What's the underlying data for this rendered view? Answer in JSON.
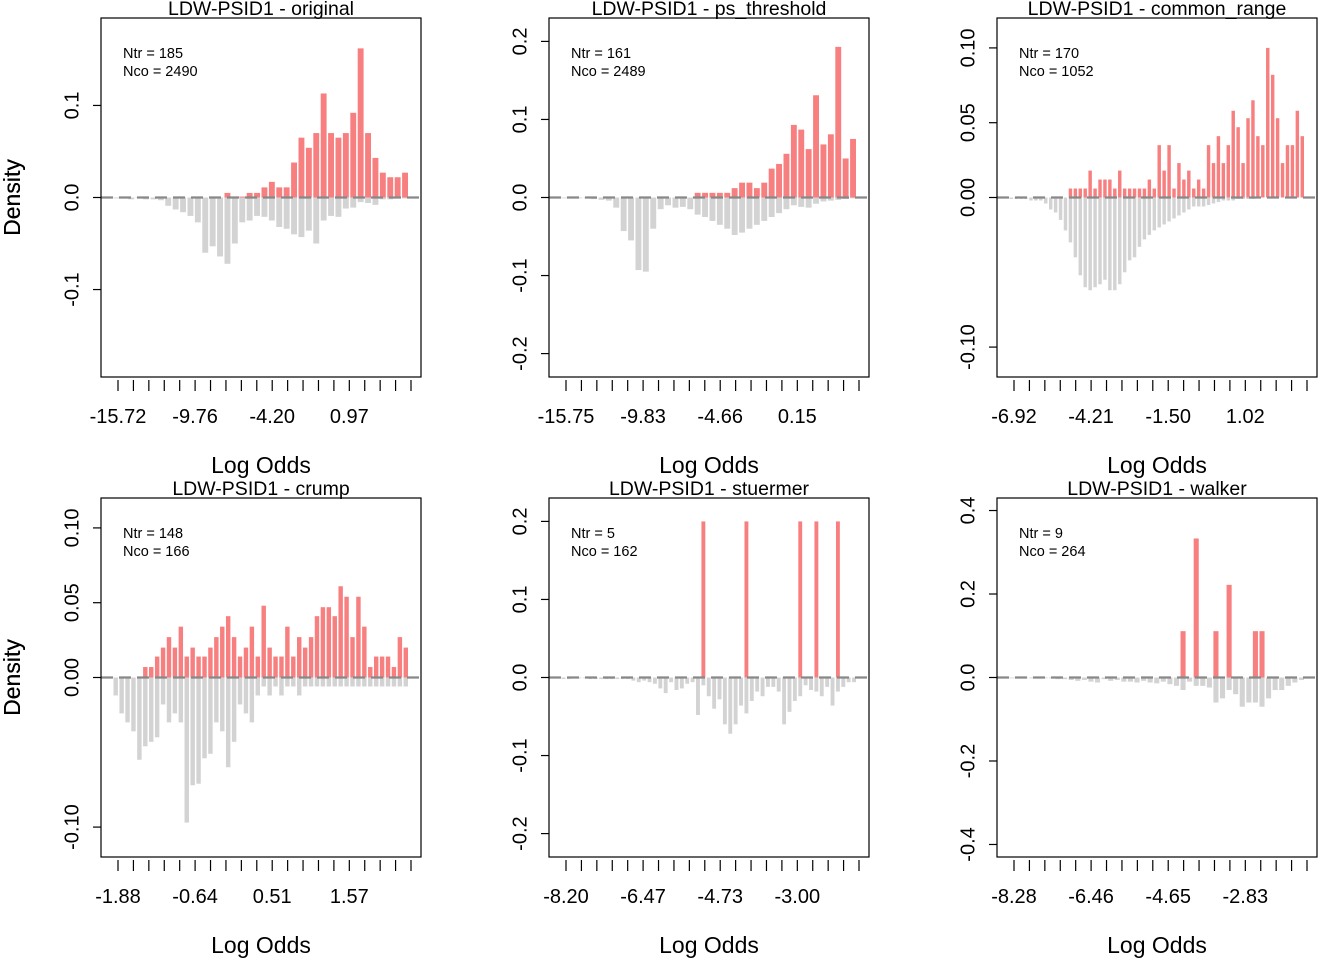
{
  "colors": {
    "treated": "#f77f7f",
    "control": "#d3d3d3",
    "zero_line": "#888888",
    "frame": "#000000"
  },
  "legend_labels": {
    "ntr": "Ntr =",
    "nco": "Nco ="
  },
  "chart_data": [
    {
      "type": "bar",
      "title": "LDW-PSID1 - original",
      "xlabel": "Log Odds",
      "ylabel": "Density",
      "x_ticks": [
        "-15.72",
        "-9.76",
        "-4.20",
        "0.97"
      ],
      "bins": 30,
      "ylim": [
        -0.195,
        0.195
      ],
      "y_ticks": [
        -0.1,
        0.0,
        0.1
      ],
      "ntr": "185",
      "nco": "2490",
      "treated": [
        0,
        0,
        0,
        0,
        0,
        0,
        0,
        0,
        0,
        0,
        0,
        0,
        0,
        0,
        0,
        0.005,
        0,
        0.001,
        0.005,
        0.005,
        0.011,
        0.017,
        0.011,
        0.011,
        0.038,
        0.065,
        0.054,
        0.07,
        0.113,
        0.07,
        0.065,
        0.07,
        0.092,
        0.162,
        0.07,
        0.043,
        0.027,
        0.022,
        0.022,
        0.027
      ],
      "control": [
        0.001,
        0.001,
        0.002,
        0.0005,
        0.002,
        0.002,
        0.003,
        0.009,
        0.013,
        0.016,
        0.02,
        0.027,
        0.06,
        0.053,
        0.064,
        0.072,
        0.05,
        0.027,
        0.025,
        0.02,
        0.021,
        0.025,
        0.032,
        0.034,
        0.04,
        0.043,
        0.036,
        0.05,
        0.025,
        0.02,
        0.021,
        0.012,
        0.011,
        0.005,
        0.006,
        0.008,
        0.002,
        0.002,
        0.001,
        0.001
      ]
    },
    {
      "type": "bar",
      "title": "LDW-PSID1 - ps_threshold",
      "xlabel": "Log Odds",
      "ylabel": "Density",
      "x_ticks": [
        "-15.75",
        "-9.83",
        "-4.66",
        "0.15"
      ],
      "bins": 30,
      "ylim": [
        -0.23,
        0.23
      ],
      "y_ticks": [
        -0.2,
        -0.1,
        0.0,
        0.1,
        0.2
      ],
      "ntr": "161",
      "nco": "2489",
      "treated": [
        0,
        0,
        0,
        0,
        0,
        0,
        0,
        0,
        0,
        0,
        0,
        0,
        0,
        0,
        0,
        0,
        0,
        0,
        0.006,
        0.006,
        0.006,
        0.006,
        0.006,
        0.012,
        0.019,
        0.019,
        0.012,
        0.019,
        0.037,
        0.043,
        0.056,
        0.093,
        0.087,
        0.062,
        0.131,
        0.068,
        0.081,
        0.193,
        0.05,
        0.075
      ],
      "control": [
        0.001,
        0.001,
        0.001,
        0.001,
        0.002,
        0.003,
        0.004,
        0.013,
        0.043,
        0.055,
        0.093,
        0.095,
        0.04,
        0.015,
        0.01,
        0.013,
        0.012,
        0.015,
        0.022,
        0.025,
        0.03,
        0.035,
        0.04,
        0.048,
        0.045,
        0.04,
        0.035,
        0.03,
        0.025,
        0.02,
        0.015,
        0.01,
        0.012,
        0.013,
        0.008,
        0.005,
        0.004,
        0.003,
        0.002,
        0.001
      ]
    },
    {
      "type": "bar",
      "title": "LDW-PSID1 - common_range",
      "xlabel": "Log Odds",
      "ylabel": "Density",
      "x_ticks": [
        "-6.92",
        "-4.21",
        "-1.50",
        "1.02"
      ],
      "bins": 30,
      "ylim": [
        -0.12,
        0.12
      ],
      "y_ticks": [
        -0.1,
        0.0,
        0.05,
        0.1
      ],
      "ntr": "170",
      "nco": "1052",
      "treated": [
        0,
        0,
        0,
        0,
        0,
        0,
        0,
        0,
        0,
        0,
        0,
        0,
        0.006,
        0.006,
        0.006,
        0.006,
        0.018,
        0.006,
        0.012,
        0.012,
        0.012,
        0.006,
        0.018,
        0.006,
        0.006,
        0.006,
        0.006,
        0.006,
        0.012,
        0.006,
        0.035,
        0.018,
        0.035,
        0.006,
        0.023,
        0.012,
        0.018,
        0.006,
        0.012,
        0.006,
        0.035,
        0.023,
        0.041,
        0.023,
        0.035,
        0.058,
        0.047,
        0.023,
        0.053,
        0.065,
        0.041,
        0.035,
        0.1,
        0.082,
        0.053,
        0.023,
        0.035,
        0.035,
        0.058,
        0.041
      ],
      "control": [
        0.001,
        0.001,
        0.001,
        0.001,
        0.002,
        0.002,
        0.002,
        0.004,
        0.008,
        0.01,
        0.015,
        0.022,
        0.03,
        0.04,
        0.052,
        0.06,
        0.062,
        0.06,
        0.058,
        0.055,
        0.062,
        0.062,
        0.058,
        0.05,
        0.042,
        0.04,
        0.033,
        0.028,
        0.025,
        0.022,
        0.02,
        0.018,
        0.016,
        0.014,
        0.012,
        0.01,
        0.008,
        0.006,
        0.006,
        0.006,
        0.005,
        0.004,
        0.003,
        0.002,
        0.002,
        0.002,
        0.001,
        0.001,
        0.001,
        0.001
      ],
      "note_bins_override": 50
    },
    {
      "type": "bar",
      "title": "LDW-PSID1 - crump",
      "xlabel": "Log Odds",
      "ylabel": "Density",
      "x_ticks": [
        "-1.88",
        "-0.64",
        "0.51",
        "1.57"
      ],
      "bins": 30,
      "ylim": [
        -0.12,
        0.12
      ],
      "y_ticks": [
        -0.1,
        0.0,
        0.05,
        0.1
      ],
      "ntr": "148",
      "nco": "166",
      "treated": [
        0,
        0,
        0,
        0,
        0,
        0.007,
        0.007,
        0.014,
        0.02,
        0.027,
        0.02,
        0.034,
        0.014,
        0.02,
        0.014,
        0.014,
        0.02,
        0.027,
        0.034,
        0.041,
        0.027,
        0.014,
        0.02,
        0.034,
        0.014,
        0.048,
        0.02,
        0.014,
        0.014,
        0.034,
        0.014,
        0.027,
        0.02,
        0.027,
        0.041,
        0.047,
        0.047,
        0.041,
        0.061,
        0.054,
        0.027,
        0.054,
        0.034,
        0.007,
        0.014,
        0.014,
        0.014,
        0.007,
        0.027,
        0.02
      ],
      "control": [
        0.012,
        0.024,
        0.03,
        0.036,
        0.055,
        0.046,
        0.043,
        0.04,
        0.018,
        0.03,
        0.024,
        0.03,
        0.097,
        0.072,
        0.071,
        0.054,
        0.051,
        0.03,
        0.036,
        0.06,
        0.043,
        0.018,
        0.024,
        0.03,
        0.012,
        0.006,
        0.012,
        0.006,
        0.012,
        0.006,
        0.006,
        0.012,
        0.006,
        0.006,
        0.006,
        0.006,
        0.006,
        0.006,
        0.006,
        0.006,
        0.006,
        0.006,
        0.006,
        0.006,
        0.006,
        0.006,
        0.006,
        0.006,
        0.006,
        0.006
      ]
    },
    {
      "type": "bar",
      "title": "LDW-PSID1 - stuermer",
      "xlabel": "Log Odds",
      "ylabel": "Density",
      "x_ticks": [
        "-8.20",
        "-6.47",
        "-4.73",
        "-3.00"
      ],
      "bins": 30,
      "ylim": [
        -0.23,
        0.23
      ],
      "y_ticks": [
        -0.2,
        -0.1,
        0.0,
        0.1,
        0.2
      ],
      "ntr": "5",
      "nco": "162",
      "treated": [
        0,
        0,
        0,
        0,
        0,
        0,
        0,
        0,
        0,
        0,
        0,
        0,
        0,
        0,
        0,
        0,
        0,
        0,
        0,
        0,
        0,
        0,
        0,
        0,
        0,
        0,
        0.2,
        0,
        0,
        0,
        0,
        0,
        0,
        0,
        0.2,
        0,
        0,
        0,
        0,
        0,
        0,
        0,
        0,
        0,
        0.2,
        0,
        0,
        0.2,
        0,
        0,
        0,
        0.2,
        0,
        0,
        0
      ],
      "control": [
        0.002,
        0.002,
        0.001,
        0.001,
        0.001,
        0.002,
        0.002,
        0.002,
        0.002,
        0.002,
        0.002,
        0.002,
        0.002,
        0.004,
        0.006,
        0.004,
        0.006,
        0.008,
        0.014,
        0.02,
        0.006,
        0.016,
        0.014,
        0.008,
        0.006,
        0.048,
        0.01,
        0.024,
        0.04,
        0.028,
        0.06,
        0.072,
        0.06,
        0.036,
        0.046,
        0.03,
        0.018,
        0.024,
        0.012,
        0.012,
        0.018,
        0.06,
        0.044,
        0.03,
        0.024,
        0.01,
        0.016,
        0.018,
        0.024,
        0.012,
        0.036,
        0.018,
        0.012,
        0.006,
        0.006
      ],
      "note_bins_override": 55
    },
    {
      "type": "bar",
      "title": "LDW-PSID1 - walker",
      "xlabel": "Log Odds",
      "ylabel": "Density",
      "x_ticks": [
        "-8.28",
        "-6.46",
        "-4.65",
        "-2.83"
      ],
      "bins": 30,
      "ylim": [
        -0.43,
        0.43
      ],
      "y_ticks": [
        -0.4,
        -0.2,
        0.0,
        0.2,
        0.4
      ],
      "ntr": "9",
      "nco": "264",
      "treated": [
        0,
        0,
        0,
        0,
        0,
        0,
        0,
        0,
        0,
        0,
        0,
        0,
        0,
        0,
        0,
        0,
        0,
        0,
        0,
        0,
        0,
        0,
        0,
        0,
        0,
        0,
        0.111,
        0,
        0.333,
        0,
        0,
        0.111,
        0,
        0.222,
        0,
        0,
        0,
        0.111,
        0.111,
        0,
        0,
        0,
        0,
        0,
        0
      ],
      "control": [
        0.002,
        0.002,
        0.002,
        0.002,
        0.002,
        0.002,
        0.002,
        0.004,
        0.004,
        0.006,
        0.008,
        0.006,
        0.01,
        0.012,
        0.004,
        0.008,
        0.006,
        0.01,
        0.01,
        0.012,
        0.008,
        0.012,
        0.014,
        0.01,
        0.016,
        0.02,
        0.03,
        0.01,
        0.02,
        0.02,
        0.024,
        0.06,
        0.05,
        0.03,
        0.04,
        0.07,
        0.06,
        0.06,
        0.07,
        0.05,
        0.03,
        0.03,
        0.02,
        0.012,
        0.006
      ],
      "note_bins_override": 45
    }
  ]
}
